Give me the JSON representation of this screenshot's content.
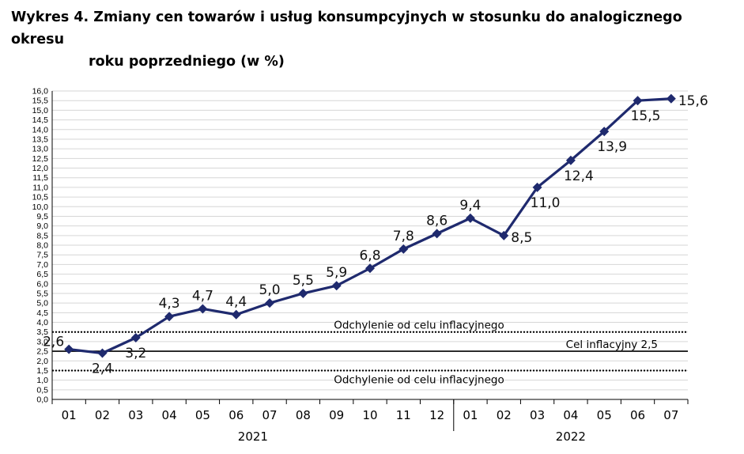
{
  "title": {
    "line1": "Wykres 4. Zmiany cen towarów i usług konsumpcyjnych w stosunku do analogicznego okresu",
    "line2": "roku poprzedniego (w %)"
  },
  "chart_data": {
    "type": "line",
    "categories": [
      "01",
      "02",
      "03",
      "04",
      "05",
      "06",
      "07",
      "08",
      "09",
      "10",
      "11",
      "12",
      "01",
      "02",
      "03",
      "04",
      "05",
      "06",
      "07"
    ],
    "groups": [
      {
        "label": "2021",
        "count": 12
      },
      {
        "label": "2022",
        "count": 7
      }
    ],
    "series": [
      {
        "values": [
          2.6,
          2.4,
          3.2,
          4.3,
          4.7,
          4.4,
          5.0,
          5.5,
          5.9,
          6.8,
          7.8,
          8.6,
          9.4,
          8.5,
          11.0,
          12.4,
          13.9,
          15.5,
          15.6
        ],
        "labels": [
          "2,6",
          "2,4",
          "3,2",
          "4,3",
          "4,7",
          "4,4",
          "5,0",
          "5,5",
          "5,9",
          "6,8",
          "7,8",
          "8,6",
          "9,4",
          "8,5",
          "11,0",
          "12,4",
          "13,9",
          "15,5",
          "15,6"
        ],
        "color": "#1f2a6e"
      }
    ],
    "ylim": [
      0,
      16
    ],
    "ytick_step": 0.5,
    "ytick_labels": [
      "0,0",
      "0,5",
      "1,0",
      "1,5",
      "2,0",
      "2,5",
      "3,0",
      "3,5",
      "4,0",
      "4,5",
      "5,0",
      "5,5",
      "6,0",
      "6,5",
      "7,0",
      "7,5",
      "8,0",
      "8,5",
      "9,0",
      "9,5",
      "10,0",
      "10,5",
      "11,0",
      "11,5",
      "12,0",
      "12,5",
      "13,0",
      "13,5",
      "14,0",
      "14,5",
      "15,0",
      "15,5",
      "16,0"
    ],
    "grid": true,
    "reference_lines": [
      {
        "value": 3.5,
        "style": "dotted",
        "label": "Odchylenie od celu inflacyjnego"
      },
      {
        "value": 2.5,
        "style": "solid",
        "label": "Cel inflacyjny 2,5"
      },
      {
        "value": 1.5,
        "style": "dotted",
        "label": "Odchylenie od celu inflacyjnego"
      }
    ]
  }
}
